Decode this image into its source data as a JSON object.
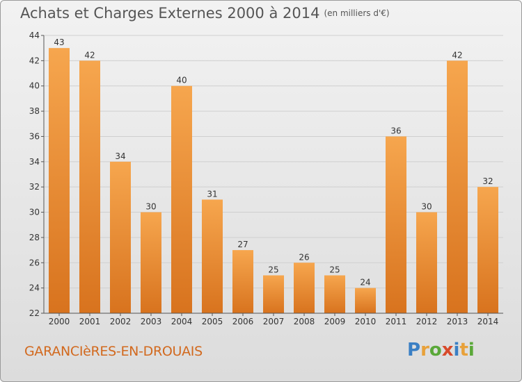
{
  "title": "Achats et Charges Externes 2000 à 2014",
  "unit": "(en milliers d'€)",
  "commune": "GARANCIèRES-EN-DROUAIS",
  "logo": {
    "letters": [
      {
        "ch": "P",
        "color": "#3a7fc4"
      },
      {
        "ch": "r",
        "color": "#e8a13a"
      },
      {
        "ch": "o",
        "color": "#5aa839"
      },
      {
        "ch": "x",
        "color": "#d84a2b"
      },
      {
        "ch": "i",
        "color": "#3a7fc4"
      },
      {
        "ch": "t",
        "color": "#e8a13a"
      },
      {
        "ch": "i",
        "color": "#5aa839"
      }
    ]
  },
  "colors": {
    "bar_top": "#f6a64e",
    "bar_bottom": "#d8731e",
    "axis": "#555555",
    "grid": "#cfcfcf"
  },
  "chart_data": {
    "type": "bar",
    "categories": [
      "2000",
      "2001",
      "2002",
      "2003",
      "2004",
      "2005",
      "2006",
      "2007",
      "2008",
      "2009",
      "2010",
      "2011",
      "2012",
      "2013",
      "2014"
    ],
    "values": [
      43,
      42,
      34,
      30,
      40,
      31,
      27,
      25,
      26,
      25,
      24,
      36,
      30,
      42,
      32
    ],
    "ylim": [
      22,
      44
    ],
    "yticks": [
      22,
      24,
      26,
      28,
      30,
      32,
      34,
      36,
      38,
      40,
      42,
      44
    ],
    "grid": true,
    "legend": "none"
  }
}
